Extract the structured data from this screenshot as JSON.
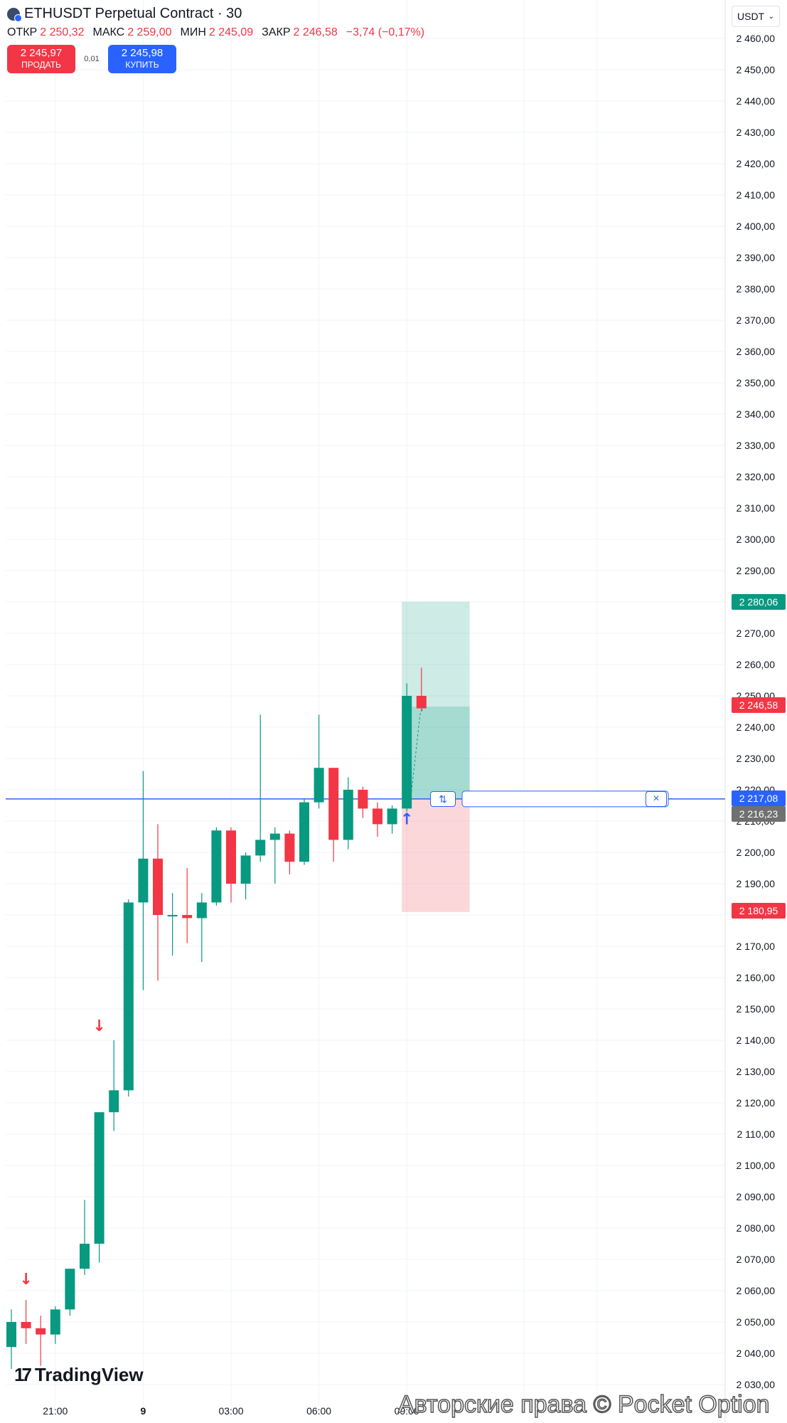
{
  "header": {
    "symbol_title": "ETHUSDT Perpetual Contract · 30",
    "ohlc": [
      {
        "label": "ОТКР",
        "value": "2 250,32"
      },
      {
        "label": "МАКС",
        "value": "2 259,00"
      },
      {
        "label": "МИН",
        "value": "2 245,09"
      },
      {
        "label": "ЗАКР",
        "value": "2 246,58"
      }
    ],
    "change": "−3,74 (−0,17%)"
  },
  "trade": {
    "sell_price": "2 245,97",
    "sell_label": "ПРОДАТЬ",
    "spread": "0,01",
    "buy_price": "2 245,98",
    "buy_label": "КУПИТЬ"
  },
  "currency": {
    "value": "USDT",
    "icon": "chevron-down-icon"
  },
  "price_tags": {
    "take_profit": "2 280,06",
    "last_price": "2 246,58",
    "entry": "2 217,08",
    "entry_sub": "2 216,23",
    "stop_loss": "2 180,95"
  },
  "position_controls": {
    "reverse_icon": "⇅",
    "close_icon": "×"
  },
  "logo": {
    "text": "TradingView"
  },
  "watermark": "Авторские права © Pocket Option",
  "colors": {
    "up": "#089981",
    "down": "#f23645",
    "accent": "#2962ff"
  },
  "chart_data": {
    "type": "candlestick",
    "symbol": "ETHUSDT Perpetual Contract",
    "interval": "30",
    "ylim": [
      2025,
      2465
    ],
    "y_ticks": [
      "2 460,00",
      "2 450,00",
      "2 440,00",
      "2 430,00",
      "2 420,00",
      "2 410,00",
      "2 400,00",
      "2 390,00",
      "2 380,00",
      "2 370,00",
      "2 360,00",
      "2 350,00",
      "2 340,00",
      "2 330,00",
      "2 320,00",
      "2 310,00",
      "2 300,00",
      "2 290,00",
      "2 280,00",
      "2 270,00",
      "2 260,00",
      "2 250,00",
      "2 240,00",
      "2 230,00",
      "2 220,00",
      "2 210,00",
      "2 200,00",
      "2 190,00",
      "2 180,00",
      "2 170,00",
      "2 160,00",
      "2 150,00",
      "2 140,00",
      "2 130,00",
      "2 120,00",
      "2 110,00",
      "2 100,00",
      "2 090,00",
      "2 080,00",
      "2 070,00",
      "2 060,00",
      "2 050,00",
      "2 040,00",
      "2 030,00"
    ],
    "x_ticks": [
      {
        "label": "21:00",
        "index": 3
      },
      {
        "label": "9",
        "index": 9
      },
      {
        "label": "03:00",
        "index": 15
      },
      {
        "label": "06:00",
        "index": 21
      },
      {
        "label": "09:00",
        "index": 27
      }
    ],
    "candles": [
      {
        "o": 2042,
        "h": 2054,
        "l": 2035,
        "c": 2050
      },
      {
        "o": 2050,
        "h": 2057,
        "l": 2043,
        "c": 2048
      },
      {
        "o": 2048,
        "h": 2052,
        "l": 2036,
        "c": 2046
      },
      {
        "o": 2046,
        "h": 2055,
        "l": 2043,
        "c": 2054
      },
      {
        "o": 2054,
        "h": 2067,
        "l": 2052,
        "c": 2067
      },
      {
        "o": 2067,
        "h": 2089,
        "l": 2065,
        "c": 2075
      },
      {
        "o": 2075,
        "h": 2117,
        "l": 2069,
        "c": 2117
      },
      {
        "o": 2117,
        "h": 2140,
        "l": 2111,
        "c": 2124
      },
      {
        "o": 2124,
        "h": 2185,
        "l": 2122,
        "c": 2184
      },
      {
        "o": 2184,
        "h": 2226,
        "l": 2156,
        "c": 2198
      },
      {
        "o": 2198,
        "h": 2209,
        "l": 2159,
        "c": 2180
      },
      {
        "o": 2180,
        "h": 2187,
        "l": 2167,
        "c": 2180
      },
      {
        "o": 2180,
        "h": 2195,
        "l": 2171,
        "c": 2179
      },
      {
        "o": 2179,
        "h": 2187,
        "l": 2165,
        "c": 2184
      },
      {
        "o": 2184,
        "h": 2208,
        "l": 2183,
        "c": 2207
      },
      {
        "o": 2207,
        "h": 2208,
        "l": 2184,
        "c": 2190
      },
      {
        "o": 2190,
        "h": 2200,
        "l": 2185,
        "c": 2199
      },
      {
        "o": 2199,
        "h": 2244,
        "l": 2197,
        "c": 2204
      },
      {
        "o": 2204,
        "h": 2208,
        "l": 2190,
        "c": 2206
      },
      {
        "o": 2206,
        "h": 2207,
        "l": 2193,
        "c": 2197
      },
      {
        "o": 2197,
        "h": 2217,
        "l": 2196,
        "c": 2216
      },
      {
        "o": 2216,
        "h": 2244,
        "l": 2214,
        "c": 2227
      },
      {
        "o": 2227,
        "h": 2227,
        "l": 2197,
        "c": 2204
      },
      {
        "o": 2204,
        "h": 2224,
        "l": 2201,
        "c": 2220
      },
      {
        "o": 2220,
        "h": 2221,
        "l": 2211,
        "c": 2214
      },
      {
        "o": 2214,
        "h": 2216,
        "l": 2205,
        "c": 2209
      },
      {
        "o": 2209,
        "h": 2215,
        "l": 2206,
        "c": 2214
      },
      {
        "o": 2214,
        "h": 2254,
        "l": 2213,
        "c": 2250
      },
      {
        "o": 2250,
        "h": 2259,
        "l": 2245,
        "c": 2246
      }
    ],
    "markers": [
      {
        "index": 1,
        "type": "sell",
        "price": 2062
      },
      {
        "index": 6,
        "type": "sell",
        "price": 2143
      },
      {
        "index": 27,
        "type": "buy",
        "price": 2209
      }
    ],
    "position": {
      "entry": 2217.08,
      "take_profit": 2280.06,
      "stop_loss": 2180.95,
      "start_index": 27,
      "end_index": 31
    }
  }
}
